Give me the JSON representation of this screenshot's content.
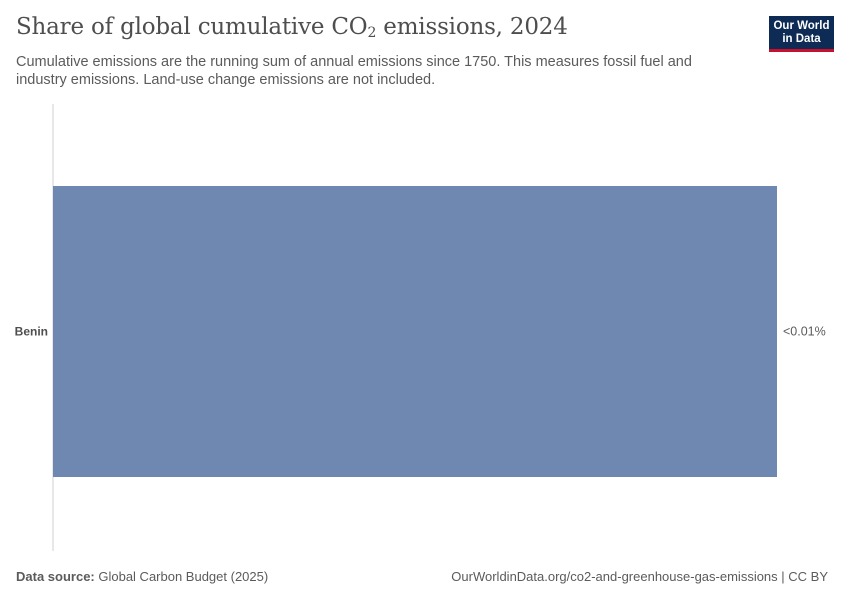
{
  "header": {
    "title_main": "Share of global cumulative CO",
    "title_sub": "2",
    "title_end": " emissions, 2024",
    "subtitle": "Cumulative emissions are the running sum of annual emissions since 1750. This measures fossil fuel and industry emissions. Land-use change emissions are not included."
  },
  "logo": {
    "line1": "Our World",
    "line2": "in Data"
  },
  "footer": {
    "source_label": "Data source:",
    "source_value": " Global Carbon Budget (2025)",
    "url": "OurWorldinData.org/co2-and-greenhouse-gas-emissions | CC BY"
  },
  "colors": {
    "bar": "#6f88b1",
    "axis": "#d0d0d0"
  },
  "chart_data": {
    "type": "bar",
    "orientation": "horizontal",
    "categories": [
      "Benin"
    ],
    "values": [
      0.004
    ],
    "value_labels": [
      "<0.01%"
    ],
    "xlim": [
      0,
      0.004
    ],
    "unit": "%",
    "grid": false
  }
}
